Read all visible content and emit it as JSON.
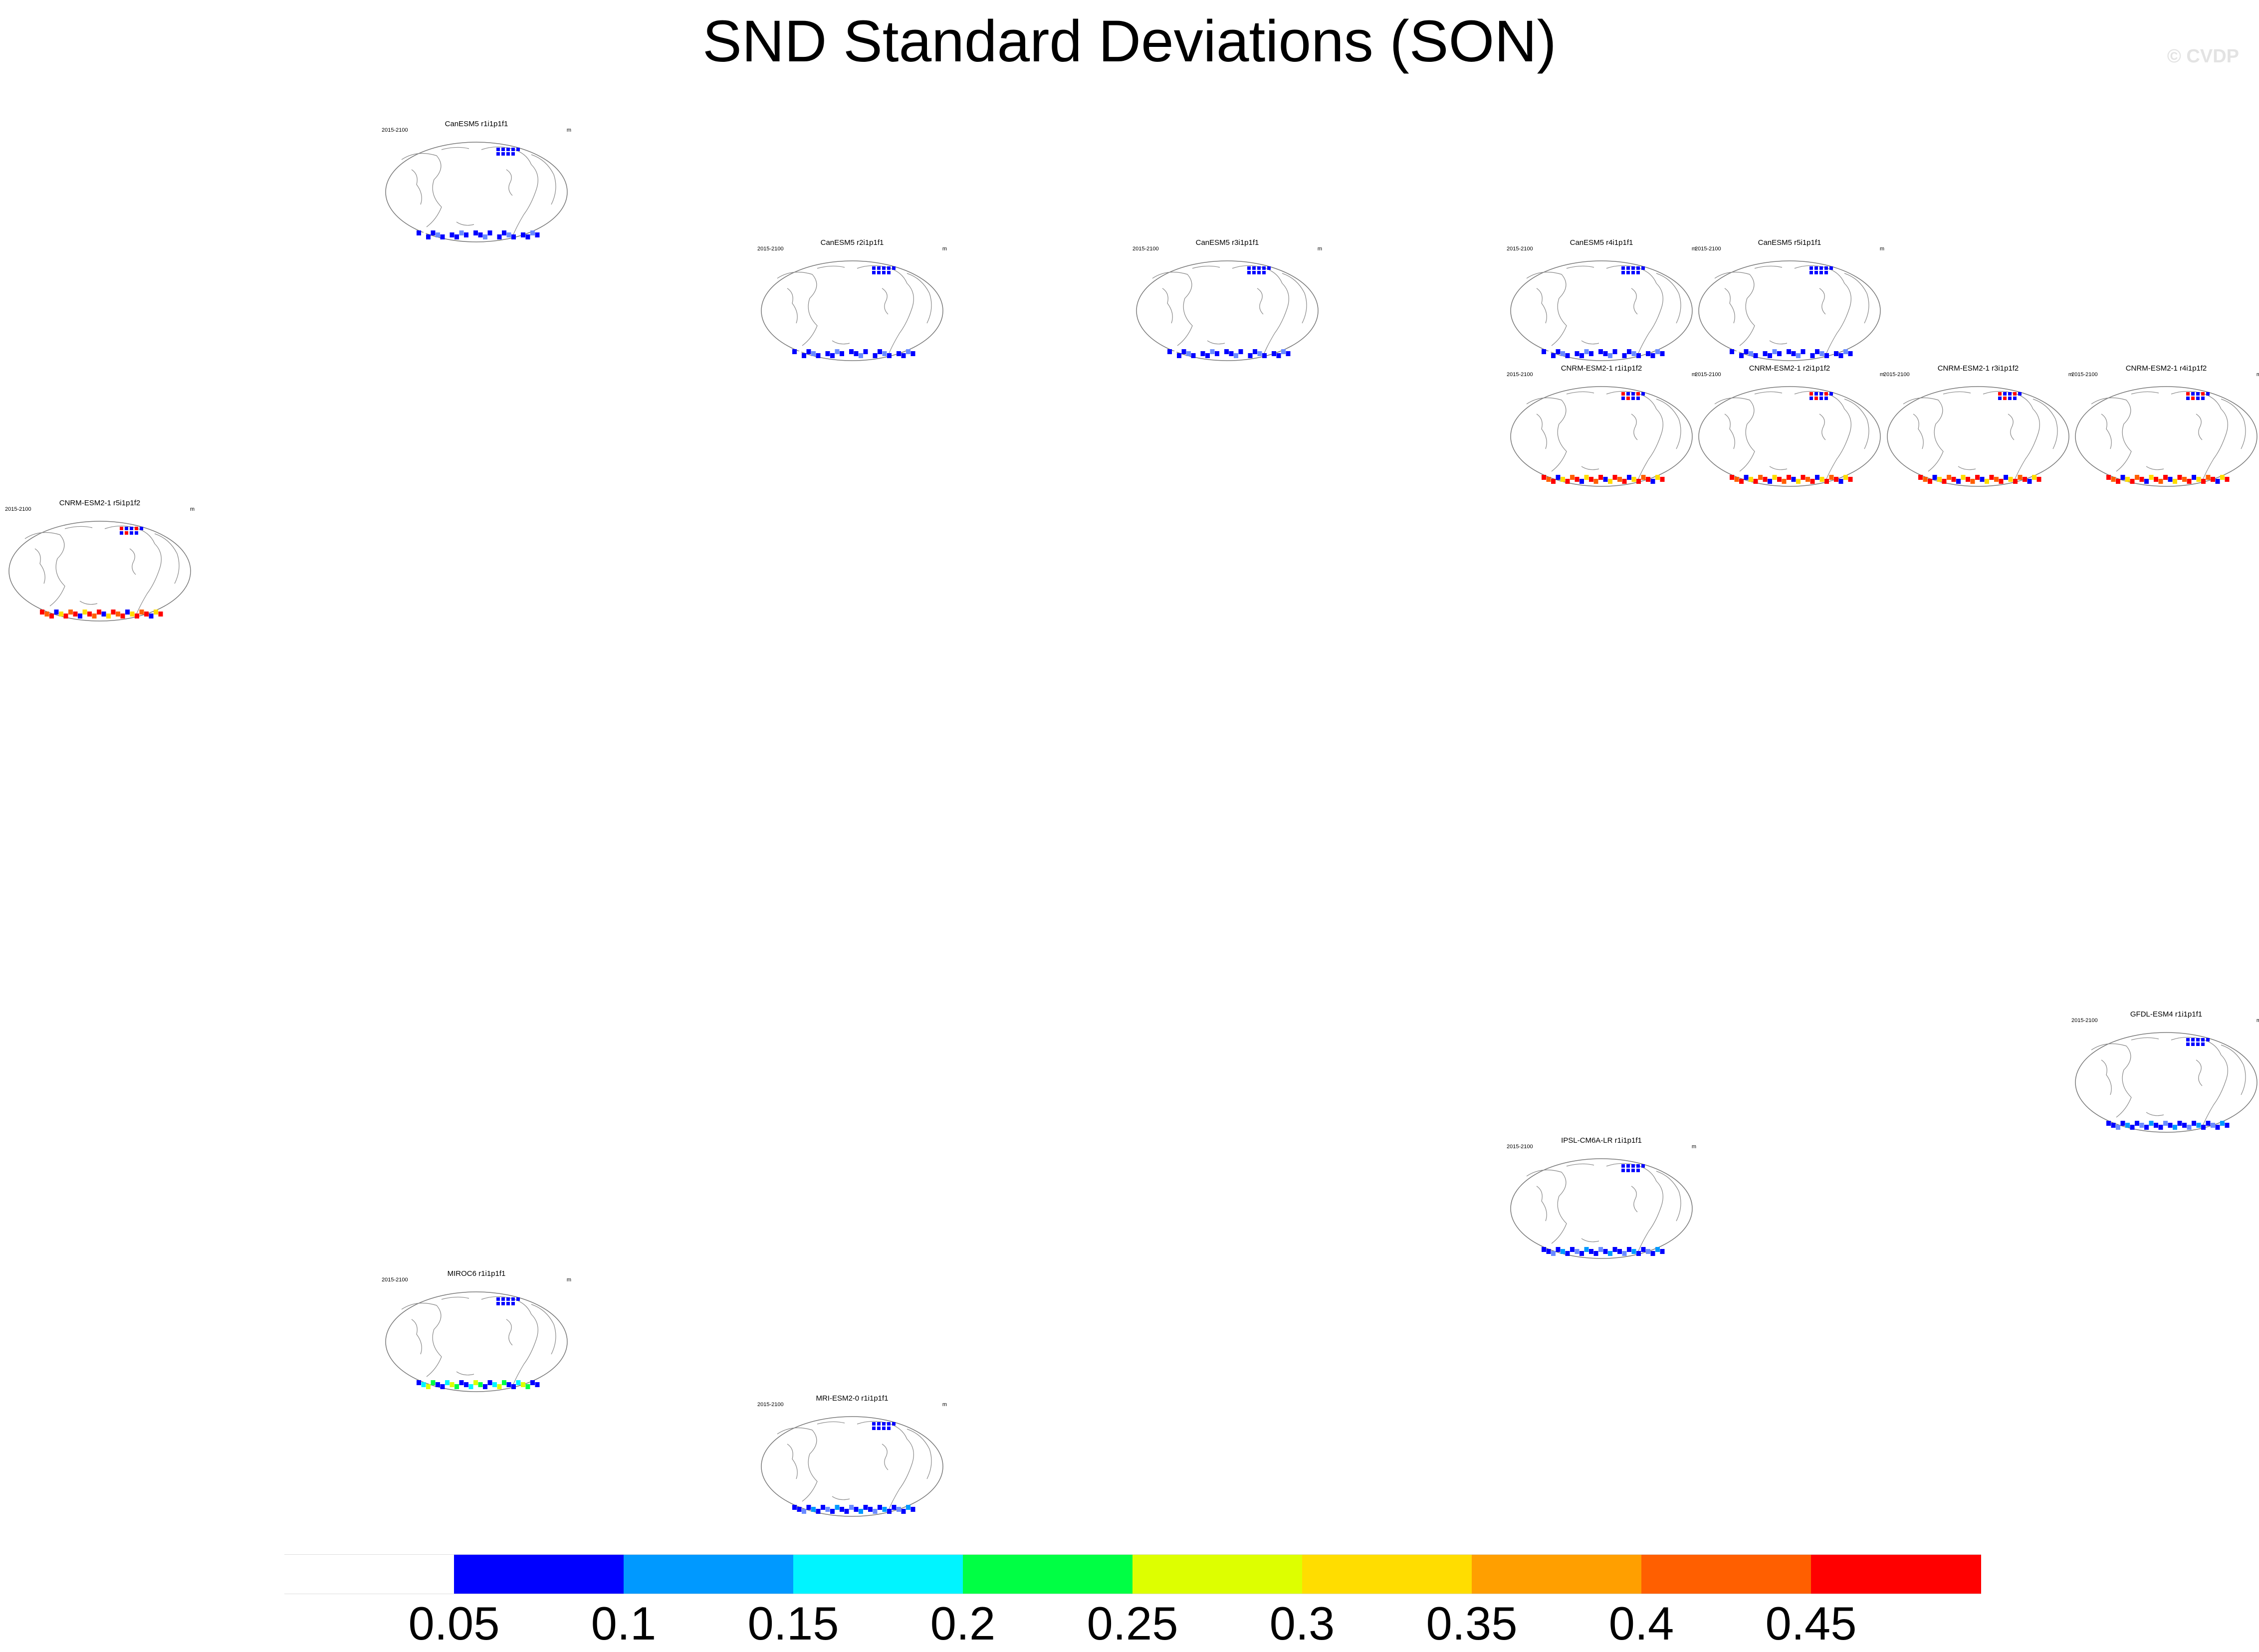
{
  "title": "SND Standard Deviations (SON)",
  "credit": "© CVDP",
  "period_label": "2015-2100",
  "units_label": "m",
  "panels": [
    {
      "title": "CanESM5 r1i1p1f1",
      "col": 1,
      "row": 0,
      "s": 2
    },
    {
      "title": "CanESM5 r2i1p1f1",
      "col": 2,
      "row": 1,
      "s": 2
    },
    {
      "title": "CanESM5 r3i1p1f1",
      "col": 3,
      "row": 1,
      "s": 2
    },
    {
      "title": "CanESM5 r4i1p1f1",
      "col": 4,
      "row": 1,
      "s": 2
    },
    {
      "title": "CanESM5 r5i1p1f1",
      "col": 5,
      "row": 1,
      "s": 2
    },
    {
      "title": "CNRM-ESM2-1 r1i1p1f2",
      "col": 4,
      "row": 2,
      "s": 3
    },
    {
      "title": "CNRM-ESM2-1 r2i1p1f2",
      "col": 5,
      "row": 2,
      "s": 3
    },
    {
      "title": "CNRM-ESM2-1 r3i1p1f2",
      "col": 6,
      "row": 2,
      "s": 3
    },
    {
      "title": "CNRM-ESM2-1 r4i1p1f2",
      "col": 7,
      "row": 2,
      "s": 3
    },
    {
      "title": "CNRM-ESM2-1 r5i1p1f2",
      "col": 0,
      "row": 3,
      "s": 3
    },
    {
      "title": "GFDL-ESM4 r1i1p1f1",
      "col": 7,
      "row": 6,
      "s": 0
    },
    {
      "title": "IPSL-CM6A-LR r1i1p1f1",
      "col": 4,
      "row": 7,
      "s": 0
    },
    {
      "title": "MIROC6 r1i1p1f1",
      "col": 1,
      "row": 8,
      "s": 1
    },
    {
      "title": "MRI-ESM2-0 r1i1p1f1",
      "col": 2,
      "row": 9,
      "s": 0
    }
  ],
  "colorbar": {
    "labels": [
      "0.05",
      "0.1",
      "0.15",
      "0.2",
      "0.25",
      "0.3",
      "0.35",
      "0.4",
      "0.45"
    ],
    "colors": [
      "#ffffff",
      "#0000ff",
      "#0099ff",
      "#00f4ff",
      "#00ff44",
      "#ddff00",
      "#ffdd00",
      "#ff9f00",
      "#ff5f00",
      "#ff0000"
    ]
  }
}
